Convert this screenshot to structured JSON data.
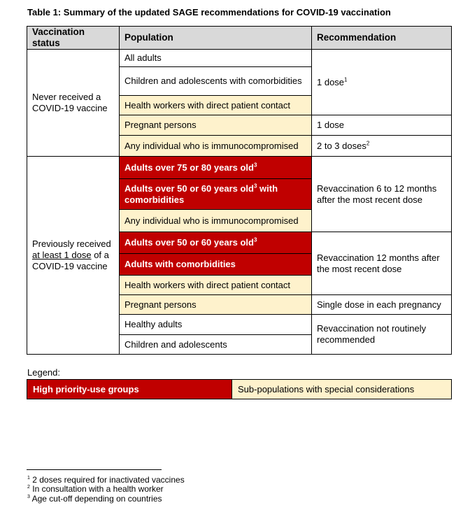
{
  "title": "Table 1: Summary of the updated SAGE recommendations for COVID-19 vaccination",
  "headers": [
    "Vaccination status",
    "Population",
    "Recommendation"
  ],
  "group1": {
    "status": "Never received a COVID-19 vaccine",
    "rows": [
      {
        "population": "All adults",
        "style": "white"
      },
      {
        "population": "Children and adolescents with comorbidities",
        "style": "white"
      },
      {
        "population": "Health workers with direct patient contact",
        "style": "cream"
      },
      {
        "population": "Pregnant persons",
        "style": "cream"
      },
      {
        "population": "Any individual who is immunocompromised",
        "style": "cream"
      }
    ],
    "rec1": "1 dose",
    "rec1_sup": "1",
    "rec2": "1 dose",
    "rec3": "2 to 3 doses",
    "rec3_sup": "2"
  },
  "group2": {
    "status_pre": "Previously received",
    "status_underline": "at least 1 dose",
    "status_post": "of a COVID-19 vaccine",
    "rows": [
      {
        "population": "Adults over 75 or 80 years old",
        "sup": "3",
        "style": "red"
      },
      {
        "population": "Adults over 50 or 60 years old",
        "sup": "3",
        "after": " with comorbidities",
        "style": "red"
      },
      {
        "population": "Any individual who is immunocompromised",
        "style": "cream"
      },
      {
        "population": "Adults over 50 or 60 years old",
        "sup": "3",
        "style": "red"
      },
      {
        "population": "Adults with comorbidities",
        "style": "red"
      },
      {
        "population": "Health workers with direct patient contact",
        "style": "cream"
      },
      {
        "population": "Pregnant persons",
        "style": "cream"
      },
      {
        "population": "Healthy adults",
        "style": "white"
      },
      {
        "population": "Children and adolescents",
        "style": "white"
      }
    ],
    "rec1": "Revaccination 6 to 12 months after the most recent dose",
    "rec2": "Revaccination 12 months after the most recent dose",
    "rec3": "Single dose in each pregnancy",
    "rec4": "Revaccination not routinely recommended"
  },
  "legend": {
    "label": "Legend:",
    "high_priority": "High priority-use groups",
    "special": "Sub-populations with special considerations"
  },
  "footnotes": [
    {
      "num": "1",
      "text": " 2 doses required for inactivated vaccines"
    },
    {
      "num": "2",
      "text": " In consultation with a health worker"
    },
    {
      "num": "3",
      "text": " Age cut-off depending on countries"
    }
  ],
  "colors": {
    "high_priority": "#c00000",
    "special": "#fef2cc",
    "header": "#d9d9d9"
  }
}
